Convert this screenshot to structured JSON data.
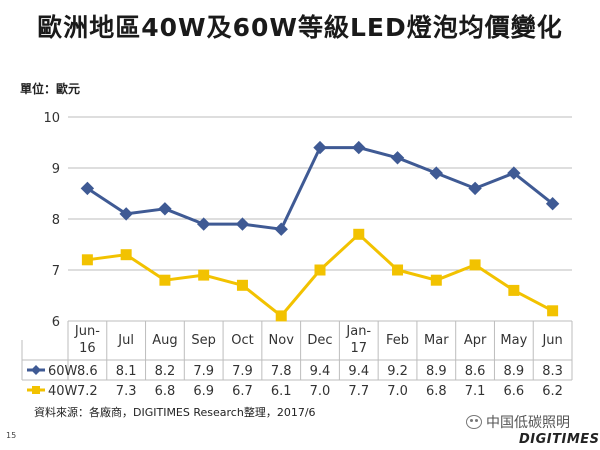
{
  "page": {
    "title": "歐洲地區40W及60W等級LED燈泡均價變化",
    "unit_label": "單位：歐元",
    "source": "資料來源：各廠商，DIGITIMES Research整理，2017/6",
    "page_number": "15",
    "watermark": "中国低碳照明",
    "logo": "DIGITIMES"
  },
  "chart_data": {
    "type": "line",
    "categories": [
      [
        "Jun-",
        "16"
      ],
      [
        "Jul"
      ],
      [
        "Aug"
      ],
      [
        "Sep"
      ],
      [
        "Oct"
      ],
      [
        "Nov"
      ],
      [
        "Dec"
      ],
      [
        "Jan-",
        "17"
      ],
      [
        "Feb"
      ],
      [
        "Mar"
      ],
      [
        "Apr"
      ],
      [
        "May"
      ],
      [
        "Jun"
      ]
    ],
    "series": [
      {
        "name": "60W",
        "color": "#3f5a94",
        "marker": "diamond",
        "values": [
          8.6,
          8.1,
          8.2,
          7.9,
          7.9,
          7.8,
          9.4,
          9.4,
          9.2,
          8.9,
          8.6,
          8.9,
          8.3
        ],
        "labels": [
          "8.6",
          "8.1",
          "8.2",
          "7.9",
          "7.9",
          "7.8",
          "9.4",
          "9.4",
          "9.2",
          "8.9",
          "8.6",
          "8.9",
          "8.3"
        ]
      },
      {
        "name": "40W",
        "color": "#f2c200",
        "marker": "square",
        "values": [
          7.2,
          7.3,
          6.8,
          6.9,
          6.7,
          6.1,
          7.0,
          7.7,
          7.0,
          6.8,
          7.1,
          6.6,
          6.2
        ],
        "labels": [
          "7.2",
          "7.3",
          "6.8",
          "6.9",
          "6.7",
          "6.1",
          "7.0",
          "7.7",
          "7.0",
          "6.8",
          "7.1",
          "6.6",
          "6.2"
        ]
      }
    ],
    "ylim": [
      6,
      10
    ],
    "yticks": [
      "6",
      "7",
      "8",
      "9",
      "10"
    ],
    "grid": true,
    "data_table": true
  }
}
